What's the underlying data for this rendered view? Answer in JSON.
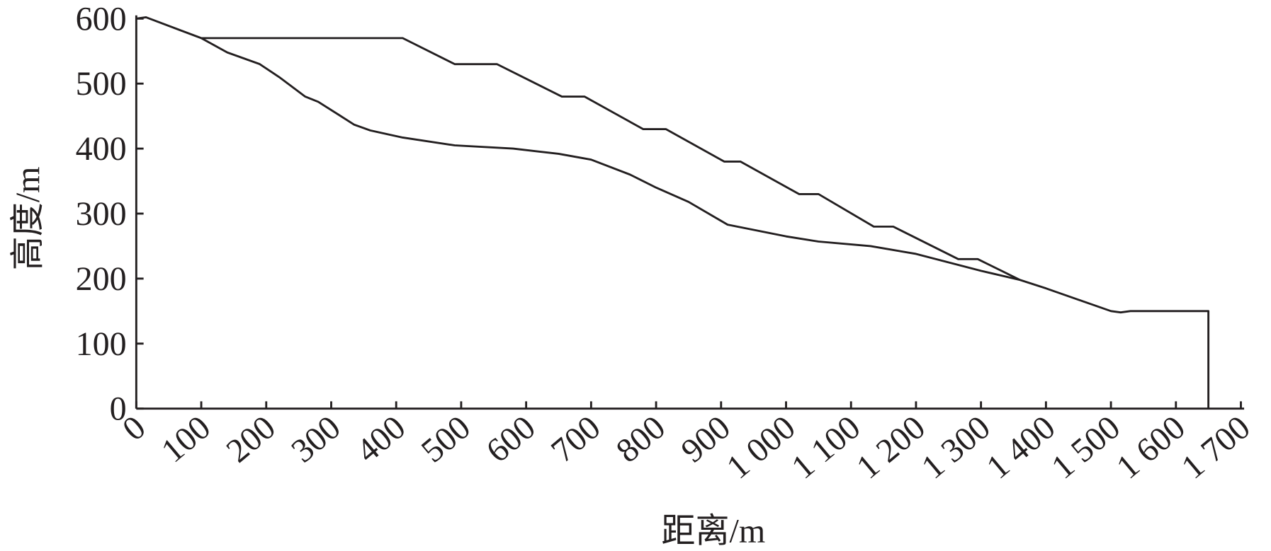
{
  "chart_data": {
    "type": "line",
    "xlabel": "距离/m",
    "ylabel": "高度/m",
    "xlim": [
      0,
      1700
    ],
    "ylim": [
      0,
      600
    ],
    "xticks": [
      0,
      100,
      200,
      300,
      400,
      500,
      600,
      700,
      800,
      900,
      {
        "value": 1000,
        "label": "1 000"
      },
      {
        "value": 1100,
        "label": "1 100"
      },
      {
        "value": 1200,
        "label": "1 200"
      },
      {
        "value": 1300,
        "label": "1 300"
      },
      {
        "value": 1400,
        "label": "1 400"
      },
      {
        "value": 1500,
        "label": "1 500"
      },
      {
        "value": 1600,
        "label": "1 600"
      },
      {
        "value": 1700,
        "label": "1 700"
      }
    ],
    "yticks": [
      0,
      100,
      200,
      300,
      400,
      500,
      600
    ],
    "series": [
      {
        "color": "#231f20",
        "x": [
          100,
          410,
          490,
          555,
          655,
          690,
          780,
          815,
          905,
          930,
          1020,
          1050,
          1135,
          1165,
          1265,
          1295,
          1360
        ],
        "values": [
          570,
          570,
          530,
          530,
          480,
          480,
          430,
          430,
          380,
          380,
          330,
          330,
          280,
          280,
          230,
          230,
          198
        ]
      },
      {
        "color": "#231f20",
        "x": [
          0,
          15,
          100,
          140,
          190,
          220,
          260,
          280,
          310,
          335,
          360,
          410,
          490,
          580,
          650,
          700,
          760,
          800,
          850,
          910,
          1000,
          1050,
          1130,
          1200,
          1300,
          1360,
          1400,
          1500,
          1515,
          1530,
          1650,
          1650
        ],
        "values": [
          600,
          602,
          570,
          548,
          530,
          510,
          480,
          472,
          453,
          437,
          428,
          417,
          405,
          400,
          392,
          383,
          360,
          340,
          318,
          283,
          265,
          257,
          250,
          238,
          212,
          198,
          185,
          150,
          148,
          150,
          150,
          0
        ]
      }
    ]
  }
}
